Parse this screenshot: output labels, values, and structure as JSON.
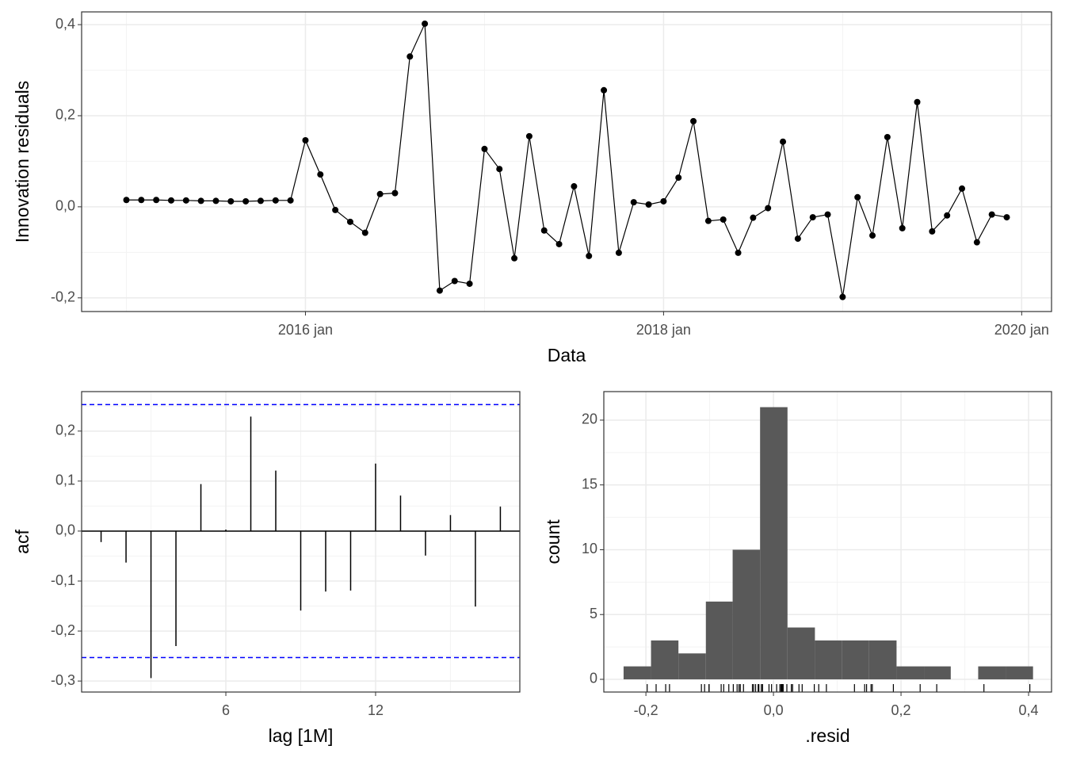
{
  "chart_data": [
    {
      "type": "line",
      "xlabel": "Data",
      "ylabel": "Innovation residuals",
      "color": "#000000",
      "grid": true,
      "x": [
        "2015-01",
        "2015-02",
        "2015-03",
        "2015-04",
        "2015-05",
        "2015-06",
        "2015-07",
        "2015-08",
        "2015-09",
        "2015-10",
        "2015-11",
        "2015-12",
        "2016-01",
        "2016-02",
        "2016-03",
        "2016-04",
        "2016-05",
        "2016-06",
        "2016-07",
        "2016-08",
        "2016-09",
        "2016-10",
        "2016-11",
        "2016-12",
        "2017-01",
        "2017-02",
        "2017-03",
        "2017-04",
        "2017-05",
        "2017-06",
        "2017-07",
        "2017-08",
        "2017-09",
        "2017-10",
        "2017-11",
        "2017-12",
        "2018-01",
        "2018-02",
        "2018-03",
        "2018-04",
        "2018-05",
        "2018-06",
        "2018-07",
        "2018-08",
        "2018-09",
        "2018-10",
        "2018-11",
        "2018-12",
        "2019-01",
        "2019-02",
        "2019-03",
        "2019-04",
        "2019-05",
        "2019-06",
        "2019-07",
        "2019-08",
        "2019-09",
        "2019-10",
        "2019-11",
        "2019-12"
      ],
      "values": [
        0.015,
        0.015,
        0.015,
        0.014,
        0.014,
        0.013,
        0.013,
        0.012,
        0.012,
        0.013,
        0.014,
        0.014,
        0.146,
        0.071,
        -0.007,
        -0.033,
        -0.057,
        0.028,
        0.03,
        0.33,
        0.402,
        -0.184,
        -0.163,
        -0.169,
        0.127,
        0.083,
        -0.113,
        0.155,
        -0.052,
        -0.082,
        0.045,
        -0.108,
        0.256,
        -0.101,
        0.01,
        0.005,
        0.012,
        0.064,
        0.188,
        -0.031,
        -0.028,
        -0.101,
        -0.024,
        -0.003,
        0.143,
        -0.07,
        -0.023,
        -0.017,
        -0.198,
        0.021,
        -0.063,
        0.153,
        -0.047,
        0.23,
        -0.054,
        -0.019,
        0.04,
        -0.078,
        -0.017,
        -0.023
      ],
      "xlim": [
        "2014-10",
        "2020-03"
      ],
      "ylim": [
        -0.23,
        0.428
      ],
      "xticks": [
        {
          "value": "2016-01",
          "label": "2016 jan"
        },
        {
          "value": "2018-01",
          "label": "2018 jan"
        },
        {
          "value": "2020-01",
          "label": "2020 jan"
        }
      ],
      "yticks": [
        {
          "value": -0.2,
          "label": "-0,2"
        },
        {
          "value": 0,
          "label": "0,0"
        },
        {
          "value": 0.2,
          "label": "0,2"
        },
        {
          "value": 0.4,
          "label": "0,4"
        }
      ]
    },
    {
      "type": "acf",
      "xlabel": "lag [1M]",
      "ylabel": "acf",
      "color": "#000000",
      "grid": true,
      "x": [
        1,
        2,
        3,
        4,
        5,
        6,
        7,
        8,
        9,
        10,
        11,
        12,
        13,
        14,
        15,
        16,
        17
      ],
      "values": [
        -0.022,
        -0.063,
        -0.294,
        -0.23,
        0.094,
        0.003,
        0.229,
        0.121,
        -0.159,
        -0.121,
        -0.119,
        0.135,
        0.071,
        -0.049,
        0.032,
        -0.151,
        0.049
      ],
      "xlim": [
        0.22,
        17.78
      ],
      "ylim": [
        -0.322,
        0.279
      ],
      "xticks": [
        6,
        12
      ],
      "yticks": [
        {
          "value": -0.3,
          "label": "-0,3"
        },
        {
          "value": -0.2,
          "label": "-0,2"
        },
        {
          "value": -0.1,
          "label": "-0,1"
        },
        {
          "value": 0,
          "label": "0,0"
        },
        {
          "value": 0.1,
          "label": "0,1"
        },
        {
          "value": 0.2,
          "label": "0,2"
        }
      ],
      "hlines": [
        {
          "value": 0.253,
          "color": "#0000ff"
        },
        {
          "value": -0.253,
          "color": "#0000ff"
        }
      ]
    },
    {
      "type": "histogram",
      "xlabel": ".resid",
      "ylabel": "count",
      "color": "#595959",
      "grid": true,
      "rug": true,
      "bins": [
        -0.235,
        -0.192,
        -0.149,
        -0.106,
        -0.064,
        -0.021,
        0.022,
        0.065,
        0.107,
        0.15,
        0.193,
        0.236,
        0.278,
        0.321,
        0.364,
        0.407
      ],
      "counts": [
        1,
        3,
        2,
        6,
        10,
        21,
        4,
        3,
        3,
        3,
        1,
        1,
        0,
        1,
        1
      ],
      "xlim": [
        -0.266,
        0.436
      ],
      "ylim": [
        -0.98,
        22.2
      ],
      "xticks": [
        {
          "value": -0.2,
          "label": "-0,2"
        },
        {
          "value": 0,
          "label": "0,0"
        },
        {
          "value": 0.2,
          "label": "0,2"
        },
        {
          "value": 0.4,
          "label": "0,4"
        }
      ],
      "yticks": [
        0,
        5,
        10,
        15,
        20
      ]
    }
  ]
}
